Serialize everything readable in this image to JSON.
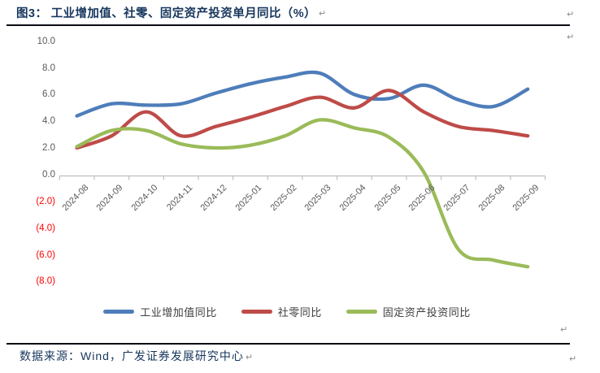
{
  "figure": {
    "title": "图3：  工业增加值、社零、固定资产投资单月同比（%）",
    "source_note": "数据来源：Wind，广发证券发展研究中心"
  },
  "marks": {
    "paragraph": "↵"
  },
  "colors": {
    "title_text": "#17365D",
    "rule": "#0B0B14",
    "axis_line": "#BFBFBF",
    "tick_label": "#595959",
    "negative_tick_label": "#FF0000",
    "legend_label": "#3F3F3F",
    "paragraph_mark": "#8C8C8C"
  },
  "chart_data": {
    "type": "line",
    "title": "工业增加值、社零、固定资产投资单月同比（%）",
    "categories": [
      "2024-08",
      "2024-09",
      "2024-10",
      "2024-11",
      "2024-12",
      "2025-01",
      "2025-02",
      "2025-03",
      "2025-04",
      "2025-05",
      "2025-06",
      "2025-07",
      "2025-08",
      "2025-09"
    ],
    "series": [
      {
        "key": "industrial-output",
        "name": "工业增加值同比",
        "color": "#4E7DBA",
        "values": [
          4.5,
          5.4,
          5.3,
          5.4,
          6.2,
          6.9,
          7.4,
          7.7,
          6.1,
          5.8,
          6.8,
          5.7,
          5.2,
          6.5
        ]
      },
      {
        "key": "retail-sales",
        "name": "社零同比",
        "color": "#BE4B48",
        "values": [
          2.1,
          3.0,
          4.8,
          3.0,
          3.7,
          4.4,
          5.2,
          5.9,
          5.1,
          6.4,
          4.8,
          3.7,
          3.4,
          3.0
        ]
      },
      {
        "key": "fixed-asset-investment",
        "name": "固定资产投资同比",
        "color": "#9ABB59",
        "values": [
          2.2,
          3.4,
          3.4,
          2.4,
          2.1,
          2.3,
          3.0,
          4.2,
          3.6,
          2.9,
          0.3,
          -5.5,
          -6.3,
          -6.8
        ]
      }
    ],
    "ylim": [
      -8,
      10
    ],
    "yticks": [
      {
        "value": 10,
        "label": "10.0"
      },
      {
        "value": 8,
        "label": "8.0"
      },
      {
        "value": 6,
        "label": "6.0"
      },
      {
        "value": 4,
        "label": "4.0"
      },
      {
        "value": 2,
        "label": "2.0"
      },
      {
        "value": 0,
        "label": "0.0"
      },
      {
        "value": -2,
        "label": "(2.0)"
      },
      {
        "value": -4,
        "label": "(4.0)"
      },
      {
        "value": -6,
        "label": "(6.0)"
      },
      {
        "value": -8,
        "label": "(8.0)"
      }
    ],
    "grid": false,
    "line_smoothing": true,
    "legend_position": "bottom"
  }
}
